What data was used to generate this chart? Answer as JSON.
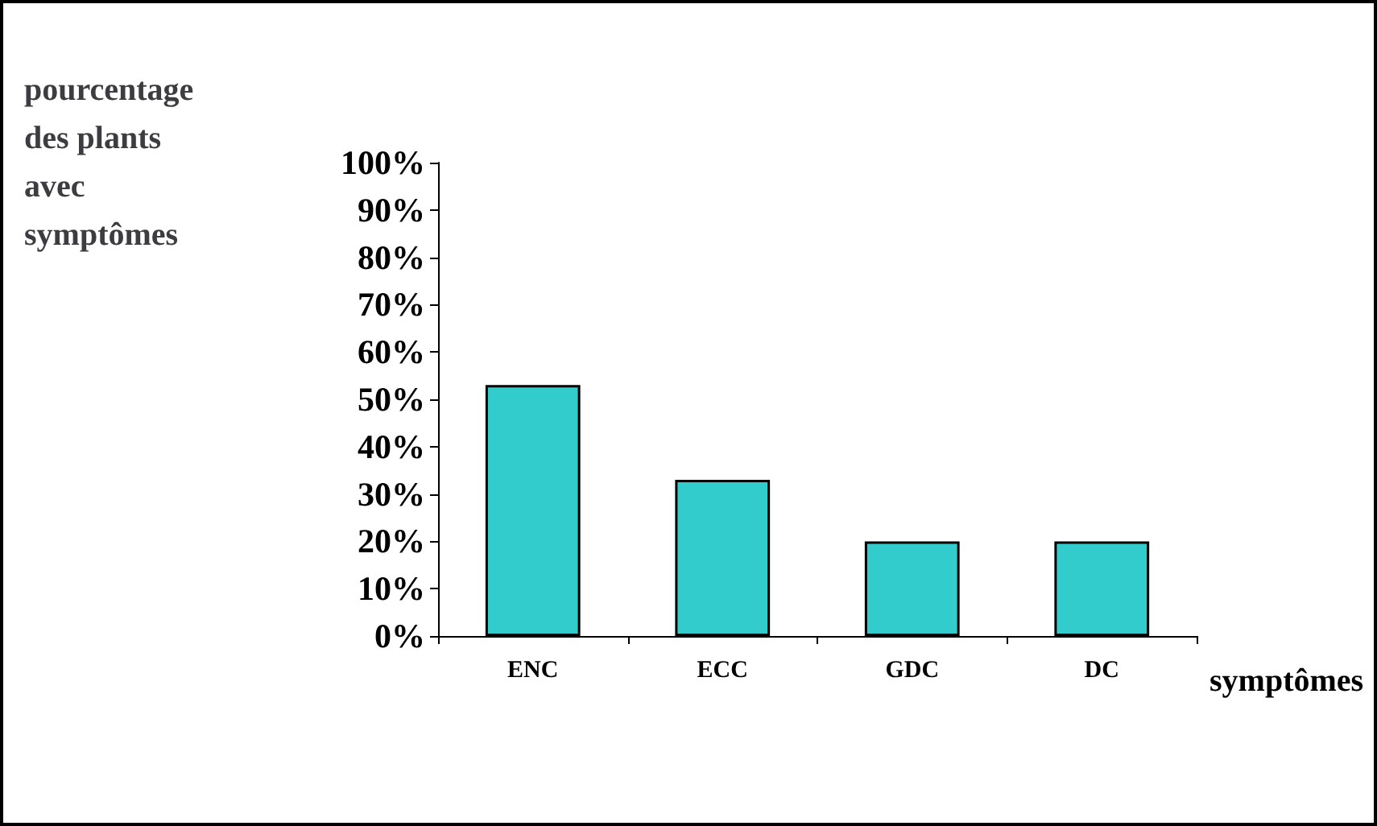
{
  "chart_data": {
    "type": "bar",
    "ylabel": "pourcentage\ndes plants\navec\nsymptômes",
    "xlabel": "symptômes",
    "categories": [
      "ENC",
      "ECC",
      "GDC",
      "DC"
    ],
    "values": [
      53,
      33,
      20,
      20
    ],
    "color": "#33cccc",
    "ylim": [
      0,
      100
    ],
    "yticks": [
      {
        "value": 0,
        "label": "0%"
      },
      {
        "value": 10,
        "label": "10%"
      },
      {
        "value": 20,
        "label": "20%"
      },
      {
        "value": 30,
        "label": "30%"
      },
      {
        "value": 40,
        "label": "40%"
      },
      {
        "value": 50,
        "label": "50%"
      },
      {
        "value": 60,
        "label": "60%"
      },
      {
        "value": 70,
        "label": "70%"
      },
      {
        "value": 80,
        "label": "80%"
      },
      {
        "value": 90,
        "label": "90%"
      },
      {
        "value": 100,
        "label": "100%"
      }
    ],
    "grid": false
  }
}
